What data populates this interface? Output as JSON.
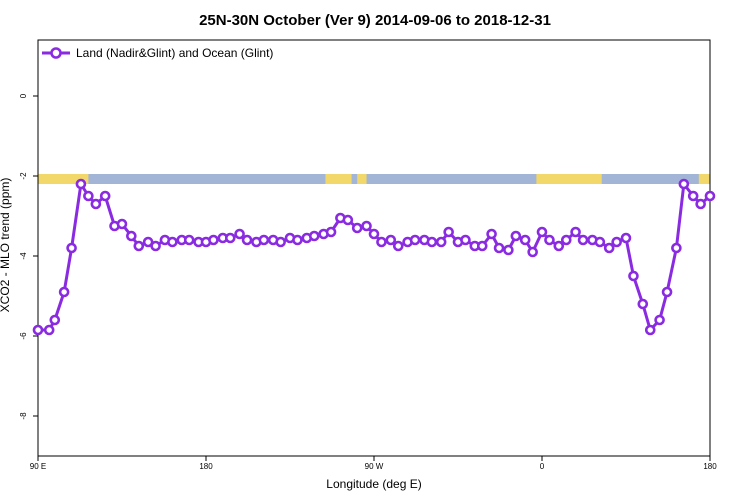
{
  "chart_data": {
    "type": "line",
    "title": "25N-30N October (Ver 9)   2014-09-06 to 2018-12-31",
    "xlabel": "Longitude (deg E)",
    "ylabel": "XCO2 - MLO trend (ppm)",
    "xlim": [
      90,
      450
    ],
    "ylim": [
      -9,
      1.4
    ],
    "x_ticks": [
      {
        "value": 90,
        "label": "90 E"
      },
      {
        "value": 180,
        "label": "180"
      },
      {
        "value": 270,
        "label": "90 W"
      },
      {
        "value": 360,
        "label": "0"
      },
      {
        "value": 450,
        "label": "180"
      }
    ],
    "y_ticks": [
      {
        "value": 0,
        "label": "0"
      },
      {
        "value": -2,
        "label": "-2"
      },
      {
        "value": -4,
        "label": "-4"
      },
      {
        "value": -6,
        "label": "-6"
      },
      {
        "value": -8,
        "label": "-8"
      }
    ],
    "legend": {
      "position": "top-left"
    },
    "land_ocean_band": {
      "y_range": [
        -2.2,
        -1.95
      ],
      "ocean_color": "#a2b5d6",
      "land_color": "#f2d76a",
      "land_x_ranges": [
        [
          90,
          117
        ],
        [
          244,
          258
        ],
        [
          261,
          266
        ],
        [
          357,
          392
        ],
        [
          444,
          450
        ]
      ]
    },
    "series": [
      {
        "name": "Land (Nadir&Glint) and Ocean (Glint)",
        "color": "#8a2be2",
        "x": [
          90,
          96,
          99,
          104,
          108,
          113,
          117,
          121,
          126,
          131,
          135,
          140,
          144,
          149,
          153,
          158,
          162,
          167,
          171,
          176,
          180,
          184,
          189,
          193,
          198,
          202,
          207,
          211,
          216,
          220,
          225,
          229,
          234,
          238,
          243,
          247,
          252,
          256,
          261,
          266,
          270,
          274,
          279,
          283,
          288,
          292,
          297,
          301,
          306,
          310,
          315,
          319,
          324,
          328,
          333,
          337,
          342,
          346,
          351,
          355,
          360,
          364,
          369,
          373,
          378,
          382,
          387,
          391,
          396,
          400,
          405,
          409,
          414,
          418,
          423,
          427,
          432,
          436,
          441,
          445,
          450
        ],
        "values": [
          -5.85,
          -5.85,
          -5.6,
          -4.9,
          -3.8,
          -2.2,
          -2.5,
          -2.7,
          -2.5,
          -3.25,
          -3.2,
          -3.5,
          -3.75,
          -3.65,
          -3.75,
          -3.6,
          -3.65,
          -3.6,
          -3.6,
          -3.65,
          -3.65,
          -3.6,
          -3.55,
          -3.55,
          -3.45,
          -3.6,
          -3.65,
          -3.6,
          -3.6,
          -3.65,
          -3.55,
          -3.6,
          -3.55,
          -3.5,
          -3.45,
          -3.4,
          -3.05,
          -3.1,
          -3.3,
          -3.25,
          -3.45,
          -3.65,
          -3.6,
          -3.75,
          -3.65,
          -3.6,
          -3.6,
          -3.65,
          -3.65,
          -3.4,
          -3.65,
          -3.6,
          -3.75,
          -3.75,
          -3.45,
          -3.8,
          -3.85,
          -3.5,
          -3.6,
          -3.9,
          -3.4,
          -3.6,
          -3.75,
          -3.6,
          -3.4,
          -3.6,
          -3.6,
          -3.65,
          -3.8,
          -3.65,
          -3.55,
          -4.5,
          -5.2,
          -5.85,
          -5.6,
          -4.9,
          -3.8,
          -2.2,
          -2.5,
          -2.7,
          -2.5
        ]
      }
    ]
  }
}
